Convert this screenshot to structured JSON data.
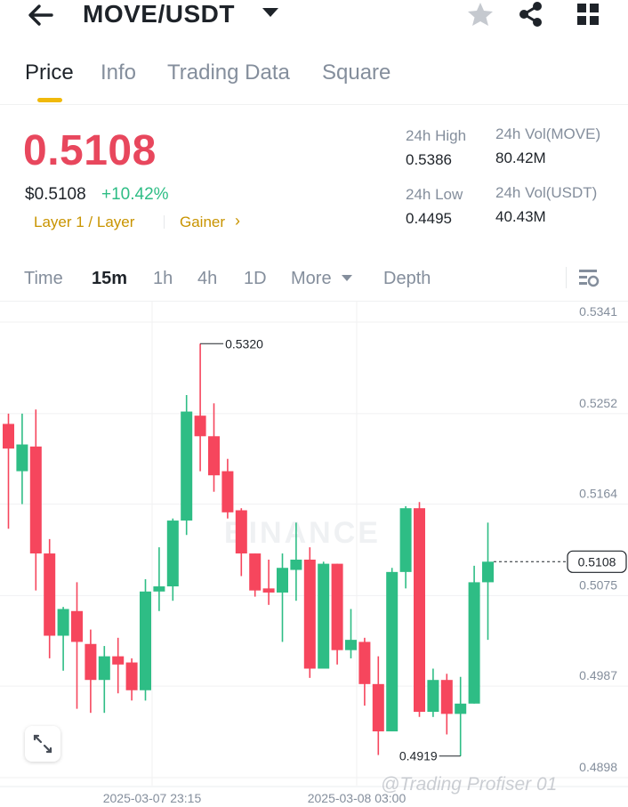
{
  "header": {
    "pair": "MOVE/USDT",
    "icons": [
      "back-arrow-icon",
      "dropdown-caret-icon",
      "favorite-star-icon",
      "share-icon",
      "grid-menu-icon"
    ]
  },
  "tabs": [
    {
      "label": "Price",
      "active": true
    },
    {
      "label": "Info",
      "active": false
    },
    {
      "label": "Trading Data",
      "active": false
    },
    {
      "label": "Square",
      "active": false
    }
  ],
  "price": {
    "last": "0.5108",
    "fiat": "$0.5108",
    "change": "+10.42%",
    "tag": "Layer 1 / Layer",
    "gainer": "Gainer",
    "gainer_arrow": "›"
  },
  "stats": {
    "high_label": "24h High",
    "high_value": "0.5386",
    "low_label": "24h Low",
    "low_value": "0.4495",
    "vol_base_label": "24h Vol(MOVE)",
    "vol_base_value": "80.42M",
    "vol_quote_label": "24h Vol(USDT)",
    "vol_quote_value": "40.43M"
  },
  "intervals": {
    "time": "Time",
    "m15": "15m",
    "h1": "1h",
    "h4": "4h",
    "d1": "1D",
    "more": "More",
    "depth": "Depth"
  },
  "colors": {
    "up": "#2ebd85",
    "down": "#f6465d",
    "price_red": "#e8475d",
    "accent": "#f0b90b",
    "tag": "#c99400"
  },
  "chart_data": {
    "type": "candlestick",
    "interval": "15m",
    "y_ticks": [
      "0.5341",
      "0.5252",
      "0.5164",
      "0.5075",
      "0.4987",
      "0.4898"
    ],
    "ylim": [
      0.4898,
      0.5341
    ],
    "x_ticks": [
      "2025-03-07 23:15",
      "2025-03-08 03:00"
    ],
    "current_price_label": "0.5108",
    "high_marker": "0.5320",
    "low_marker": "0.4919",
    "watermark": "BINANCE",
    "candles": [
      {
        "o": 0.5242,
        "h": 0.5252,
        "l": 0.514,
        "c": 0.5218
      },
      {
        "o": 0.5196,
        "h": 0.5252,
        "l": 0.5164,
        "c": 0.5222
      },
      {
        "o": 0.522,
        "h": 0.5256,
        "l": 0.508,
        "c": 0.5116
      },
      {
        "o": 0.5116,
        "h": 0.513,
        "l": 0.5014,
        "c": 0.5036
      },
      {
        "o": 0.5036,
        "h": 0.5064,
        "l": 0.5002,
        "c": 0.5062
      },
      {
        "o": 0.506,
        "h": 0.5088,
        "l": 0.4965,
        "c": 0.503
      },
      {
        "o": 0.5028,
        "h": 0.5042,
        "l": 0.4961,
        "c": 0.4993
      },
      {
        "o": 0.4993,
        "h": 0.5026,
        "l": 0.4961,
        "c": 0.5016
      },
      {
        "o": 0.5016,
        "h": 0.5034,
        "l": 0.498,
        "c": 0.5008
      },
      {
        "o": 0.501,
        "h": 0.5014,
        "l": 0.4973,
        "c": 0.4983
      },
      {
        "o": 0.4983,
        "h": 0.5091,
        "l": 0.4973,
        "c": 0.5079
      },
      {
        "o": 0.5079,
        "h": 0.5122,
        "l": 0.506,
        "c": 0.5084
      },
      {
        "o": 0.5084,
        "h": 0.515,
        "l": 0.507,
        "c": 0.5148
      },
      {
        "o": 0.5148,
        "h": 0.527,
        "l": 0.5134,
        "c": 0.5254
      },
      {
        "o": 0.525,
        "h": 0.532,
        "l": 0.5196,
        "c": 0.523
      },
      {
        "o": 0.523,
        "h": 0.5262,
        "l": 0.5176,
        "c": 0.5192
      },
      {
        "o": 0.5196,
        "h": 0.5208,
        "l": 0.515,
        "c": 0.5156
      },
      {
        "o": 0.5158,
        "h": 0.516,
        "l": 0.5094,
        "c": 0.5116
      },
      {
        "o": 0.5116,
        "h": 0.5116,
        "l": 0.5074,
        "c": 0.508
      },
      {
        "o": 0.5082,
        "h": 0.511,
        "l": 0.5066,
        "c": 0.5078
      },
      {
        "o": 0.5078,
        "h": 0.5116,
        "l": 0.503,
        "c": 0.5102
      },
      {
        "o": 0.51,
        "h": 0.5146,
        "l": 0.507,
        "c": 0.511
      },
      {
        "o": 0.511,
        "h": 0.5122,
        "l": 0.4995,
        "c": 0.5004
      },
      {
        "o": 0.5004,
        "h": 0.5108,
        "l": 0.5004,
        "c": 0.5106
      },
      {
        "o": 0.5106,
        "h": 0.5106,
        "l": 0.5008,
        "c": 0.5022
      },
      {
        "o": 0.5022,
        "h": 0.5062,
        "l": 0.5014,
        "c": 0.5032
      },
      {
        "o": 0.503,
        "h": 0.5034,
        "l": 0.4968,
        "c": 0.4989
      },
      {
        "o": 0.4989,
        "h": 0.5016,
        "l": 0.492,
        "c": 0.4943
      },
      {
        "o": 0.4943,
        "h": 0.5102,
        "l": 0.4943,
        "c": 0.5098
      },
      {
        "o": 0.5098,
        "h": 0.5162,
        "l": 0.5082,
        "c": 0.516
      },
      {
        "o": 0.516,
        "h": 0.5166,
        "l": 0.4957,
        "c": 0.4962
      },
      {
        "o": 0.4962,
        "h": 0.5004,
        "l": 0.4957,
        "c": 0.4993
      },
      {
        "o": 0.4993,
        "h": 0.4999,
        "l": 0.494,
        "c": 0.496
      },
      {
        "o": 0.496,
        "h": 0.4996,
        "l": 0.4919,
        "c": 0.497
      },
      {
        "o": 0.497,
        "h": 0.5104,
        "l": 0.497,
        "c": 0.5088
      },
      {
        "o": 0.5088,
        "h": 0.5146,
        "l": 0.5032,
        "c": 0.5108
      }
    ]
  }
}
